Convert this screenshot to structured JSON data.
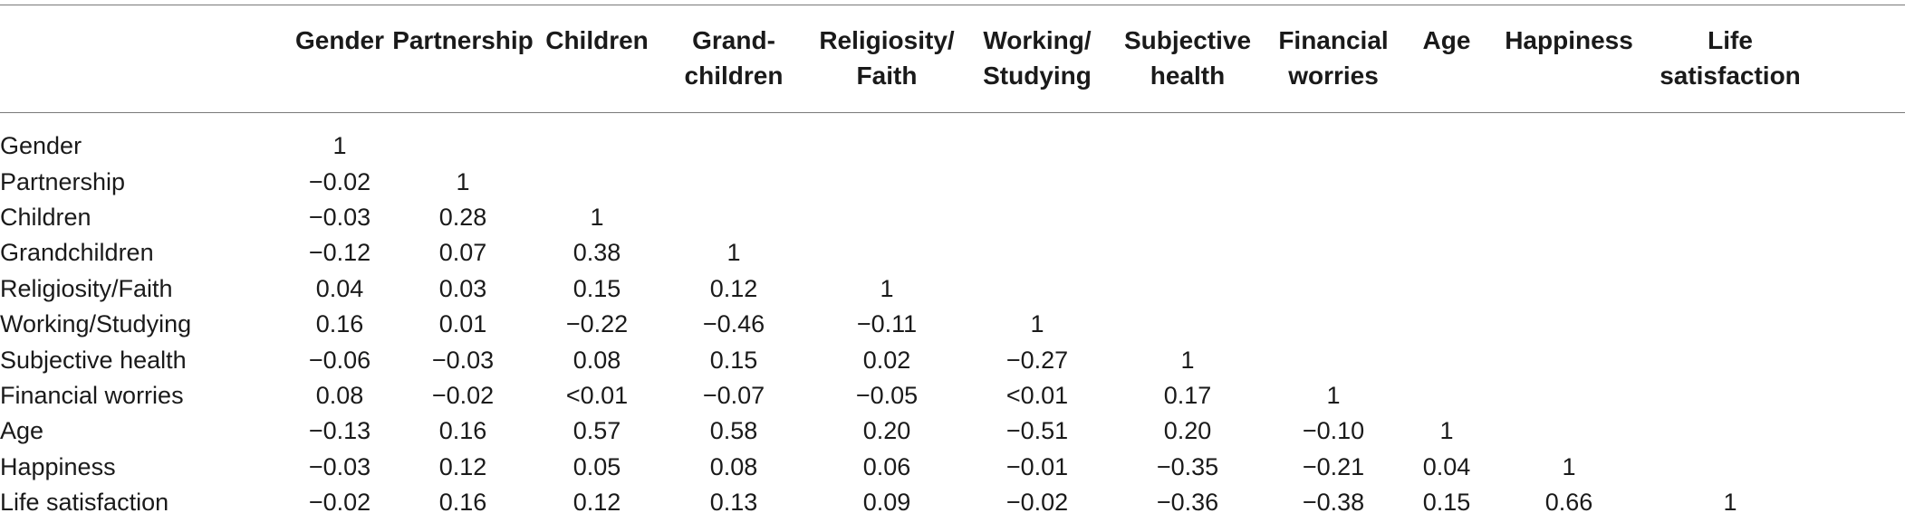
{
  "table": {
    "columns": [
      [
        "Gender"
      ],
      [
        "Partnership"
      ],
      [
        "Children"
      ],
      [
        "Grand-",
        "children"
      ],
      [
        "Religiosity/",
        "Faith"
      ],
      [
        "Working/",
        "Studying"
      ],
      [
        "Subjective",
        "health"
      ],
      [
        "Financial",
        "worries"
      ],
      [
        "Age"
      ],
      [
        "Happiness"
      ],
      [
        "Life",
        "satisfaction"
      ]
    ],
    "rows": [
      {
        "label": "Gender",
        "values": [
          "1"
        ]
      },
      {
        "label": "Partnership",
        "values": [
          "−0.02",
          "1"
        ]
      },
      {
        "label": "Children",
        "values": [
          "−0.03",
          "0.28",
          "1"
        ]
      },
      {
        "label": "Grandchildren",
        "values": [
          "−0.12",
          "0.07",
          "0.38",
          "1"
        ]
      },
      {
        "label": "Religiosity/Faith",
        "values": [
          "0.04",
          "0.03",
          "0.15",
          "0.12",
          "1"
        ]
      },
      {
        "label": "Working/Studying",
        "values": [
          "0.16",
          "0.01",
          "−0.22",
          "−0.46",
          "−0.11",
          "1"
        ]
      },
      {
        "label": "Subjective health",
        "values": [
          "−0.06",
          "−0.03",
          "0.08",
          "0.15",
          "0.02",
          "−0.27",
          "1"
        ]
      },
      {
        "label": "Financial worries",
        "values": [
          "0.08",
          "−0.02",
          "<0.01",
          "−0.07",
          "−0.05",
          "<0.01",
          "0.17",
          "1"
        ]
      },
      {
        "label": "Age",
        "values": [
          "−0.13",
          "0.16",
          "0.57",
          "0.58",
          "0.20",
          "−0.51",
          "0.20",
          "−0.10",
          "1"
        ]
      },
      {
        "label": "Happiness",
        "values": [
          "−0.03",
          "0.12",
          "0.05",
          "0.08",
          "0.06",
          "−0.01",
          "−0.35",
          "−0.21",
          "0.04",
          "1"
        ]
      },
      {
        "label": "Life satisfaction",
        "values": [
          "−0.02",
          "0.16",
          "0.12",
          "0.13",
          "0.09",
          "−0.02",
          "−0.36",
          "−0.38",
          "0.15",
          "0.66",
          "1"
        ]
      }
    ]
  }
}
